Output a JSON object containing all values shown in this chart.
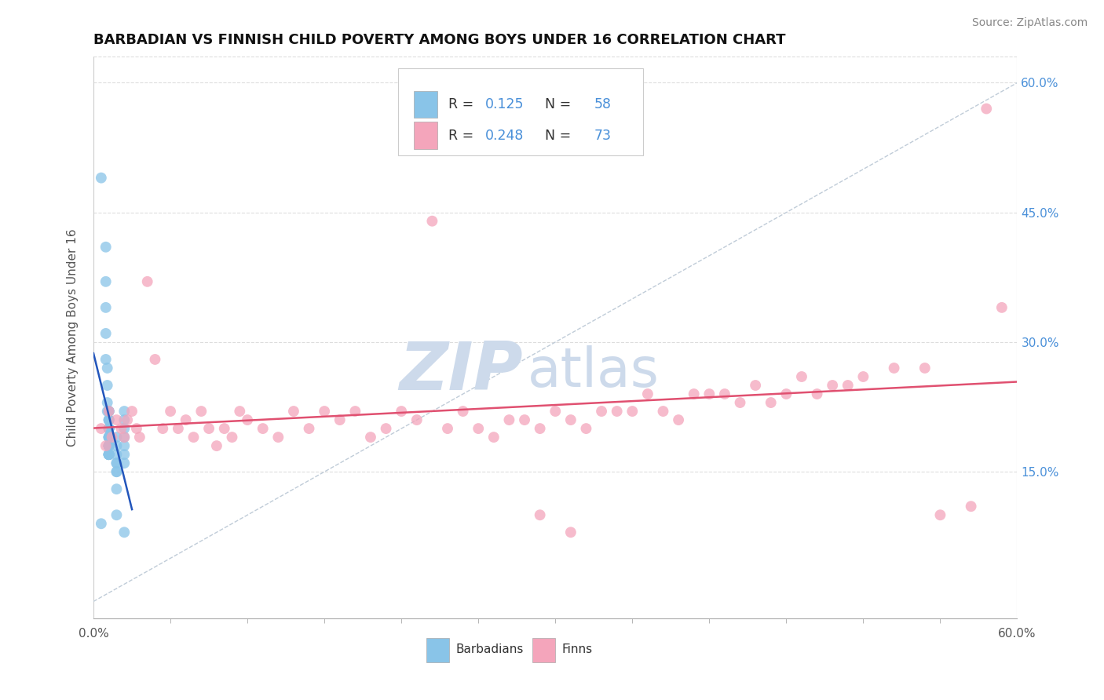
{
  "title": "BARBADIAN VS FINNISH CHILD POVERTY AMONG BOYS UNDER 16 CORRELATION CHART",
  "source": "Source: ZipAtlas.com",
  "ylabel": "Child Poverty Among Boys Under 16",
  "xmin": 0.0,
  "xmax": 0.6,
  "ymin": -0.02,
  "ymax": 0.63,
  "ytick_positions": [
    0.15,
    0.3,
    0.45,
    0.6
  ],
  "ytick_labels": [
    "15.0%",
    "30.0%",
    "45.0%",
    "60.0%"
  ],
  "xtick_labels_ends": [
    "0.0%",
    "60.0%"
  ],
  "barbadian_color": "#89c4e8",
  "finn_color": "#f4a5bb",
  "barbadian_R": 0.125,
  "barbadian_N": 58,
  "finn_R": 0.248,
  "finn_N": 73,
  "barbadian_trend_color": "#2255bb",
  "finn_trend_color": "#e05070",
  "diagonal_color": "#c0ccd8",
  "watermark_zip": "ZIP",
  "watermark_atlas": "atlas",
  "watermark_color": "#cddaeb",
  "background_color": "#ffffff",
  "tick_color": "#4a90d9",
  "barbadians_x": [
    0.005,
    0.005,
    0.008,
    0.008,
    0.008,
    0.008,
    0.008,
    0.009,
    0.009,
    0.009,
    0.009,
    0.01,
    0.01,
    0.01,
    0.01,
    0.01,
    0.01,
    0.01,
    0.01,
    0.01,
    0.01,
    0.01,
    0.01,
    0.01,
    0.01,
    0.01,
    0.01,
    0.01,
    0.01,
    0.01,
    0.01,
    0.01,
    0.01,
    0.01,
    0.01,
    0.01,
    0.01,
    0.01,
    0.01,
    0.01,
    0.01,
    0.015,
    0.015,
    0.015,
    0.015,
    0.015,
    0.015,
    0.015,
    0.015,
    0.015,
    0.02,
    0.02,
    0.02,
    0.02,
    0.02,
    0.02,
    0.02,
    0.02
  ],
  "barbadians_y": [
    0.49,
    0.09,
    0.41,
    0.37,
    0.34,
    0.31,
    0.28,
    0.27,
    0.25,
    0.23,
    0.22,
    0.22,
    0.22,
    0.22,
    0.21,
    0.21,
    0.21,
    0.2,
    0.2,
    0.2,
    0.2,
    0.19,
    0.19,
    0.19,
    0.19,
    0.19,
    0.18,
    0.18,
    0.18,
    0.18,
    0.18,
    0.18,
    0.18,
    0.18,
    0.17,
    0.17,
    0.17,
    0.17,
    0.17,
    0.17,
    0.17,
    0.19,
    0.18,
    0.17,
    0.16,
    0.16,
    0.15,
    0.15,
    0.13,
    0.1,
    0.22,
    0.21,
    0.2,
    0.19,
    0.18,
    0.17,
    0.16,
    0.08
  ],
  "finns_x": [
    0.005,
    0.008,
    0.01,
    0.012,
    0.015,
    0.018,
    0.02,
    0.022,
    0.025,
    0.028,
    0.03,
    0.035,
    0.04,
    0.045,
    0.05,
    0.055,
    0.06,
    0.065,
    0.07,
    0.075,
    0.08,
    0.085,
    0.09,
    0.095,
    0.1,
    0.11,
    0.12,
    0.13,
    0.14,
    0.15,
    0.16,
    0.17,
    0.18,
    0.19,
    0.2,
    0.21,
    0.22,
    0.23,
    0.24,
    0.25,
    0.26,
    0.27,
    0.28,
    0.29,
    0.3,
    0.31,
    0.32,
    0.33,
    0.34,
    0.35,
    0.36,
    0.37,
    0.38,
    0.39,
    0.4,
    0.41,
    0.42,
    0.43,
    0.44,
    0.45,
    0.46,
    0.47,
    0.48,
    0.49,
    0.5,
    0.52,
    0.54,
    0.55,
    0.57,
    0.59,
    0.29,
    0.31,
    0.58
  ],
  "finns_y": [
    0.2,
    0.18,
    0.22,
    0.19,
    0.21,
    0.2,
    0.19,
    0.21,
    0.22,
    0.2,
    0.19,
    0.37,
    0.28,
    0.2,
    0.22,
    0.2,
    0.21,
    0.19,
    0.22,
    0.2,
    0.18,
    0.2,
    0.19,
    0.22,
    0.21,
    0.2,
    0.19,
    0.22,
    0.2,
    0.22,
    0.21,
    0.22,
    0.19,
    0.2,
    0.22,
    0.21,
    0.44,
    0.2,
    0.22,
    0.2,
    0.19,
    0.21,
    0.21,
    0.2,
    0.22,
    0.21,
    0.2,
    0.22,
    0.22,
    0.22,
    0.24,
    0.22,
    0.21,
    0.24,
    0.24,
    0.24,
    0.23,
    0.25,
    0.23,
    0.24,
    0.26,
    0.24,
    0.25,
    0.25,
    0.26,
    0.27,
    0.27,
    0.1,
    0.11,
    0.34,
    0.1,
    0.08,
    0.57
  ]
}
